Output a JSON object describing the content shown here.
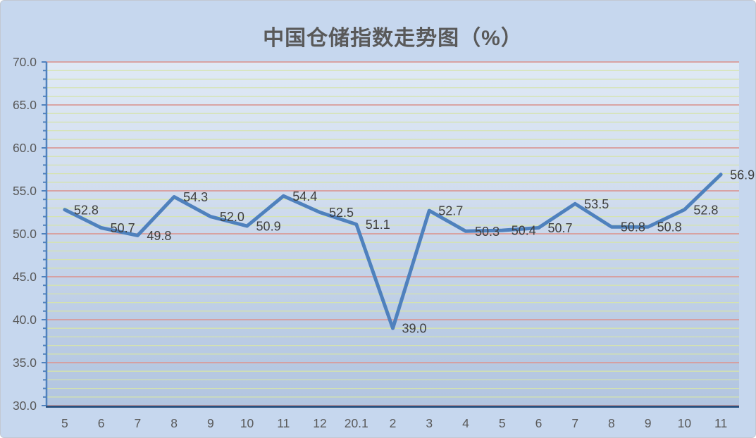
{
  "chart_data": {
    "type": "line",
    "title": "中国仓储指数走势图（%）",
    "categories": [
      "5",
      "6",
      "7",
      "8",
      "9",
      "10",
      "11",
      "12",
      "20.1",
      "2",
      "3",
      "4",
      "5",
      "6",
      "7",
      "8",
      "9",
      "10",
      "11"
    ],
    "series": [
      {
        "name": "中国仓储指数",
        "values": [
          52.8,
          50.7,
          49.8,
          54.3,
          52.0,
          50.9,
          54.4,
          52.5,
          51.1,
          39.0,
          52.7,
          50.3,
          50.4,
          50.7,
          53.5,
          50.8,
          50.8,
          52.8,
          56.9
        ]
      }
    ],
    "data_labels_visible": true,
    "xlabel": "",
    "ylabel": "",
    "ylim": [
      30.0,
      70.0
    ],
    "y_major_step": 5.0,
    "y_minor_step": 1.0,
    "y_tick_labels": [
      "70.0",
      "65.0",
      "60.0",
      "55.0",
      "50.0",
      "45.0",
      "40.0",
      "35.0",
      "30.0"
    ],
    "grid": "major and minor horizontal gridlines, on",
    "legend": "none",
    "colors": {
      "series_line": "#4f81bd",
      "major_grid": "#d99a98",
      "minor_grid": "#d5e3ae",
      "y_axis": "#4f81bd",
      "x_axis": "#26507f",
      "title_text": "#595959",
      "tick_label_text": "#595959",
      "data_label_text": "#3f3f3f",
      "canvas_bg": "#c6d7ee",
      "plot_bg_top": "#dee8f4",
      "plot_bg_bottom": "#b2c5e0"
    }
  }
}
